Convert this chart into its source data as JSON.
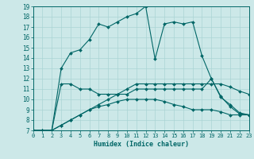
{
  "xlabel": "Humidex (Indice chaleur)",
  "xlim": [
    0,
    23
  ],
  "ylim": [
    7,
    19
  ],
  "xticks": [
    0,
    1,
    2,
    3,
    4,
    5,
    6,
    7,
    8,
    9,
    10,
    11,
    12,
    13,
    14,
    15,
    16,
    17,
    18,
    19,
    20,
    21,
    22,
    23
  ],
  "yticks": [
    7,
    8,
    9,
    10,
    11,
    12,
    13,
    14,
    15,
    16,
    17,
    18,
    19
  ],
  "bg_color": "#cce8e8",
  "grid_color": "#aad4d4",
  "line_color": "#006666",
  "lines": [
    [
      7.0,
      6.8,
      7.0,
      13.0,
      14.5,
      14.8,
      15.8,
      17.3,
      17.0,
      17.5,
      18.0,
      18.3,
      19.0,
      13.9,
      17.3,
      17.5,
      17.3,
      17.5,
      14.2,
      12.0,
      10.3,
      9.3,
      8.6,
      8.5
    ],
    [
      7.0,
      7.0,
      7.0,
      11.5,
      11.5,
      11.0,
      11.0,
      10.5,
      10.5,
      10.5,
      10.5,
      11.0,
      11.0,
      11.0,
      11.0,
      11.0,
      11.0,
      11.0,
      11.0,
      12.0,
      10.2,
      9.5,
      8.7,
      8.5
    ],
    [
      7.0,
      7.0,
      7.0,
      7.5,
      8.0,
      8.5,
      9.0,
      9.3,
      9.5,
      9.8,
      10.0,
      10.0,
      10.0,
      10.0,
      9.8,
      9.5,
      9.3,
      9.0,
      9.0,
      9.0,
      8.8,
      8.5,
      8.5,
      8.5
    ],
    [
      7.0,
      7.0,
      7.0,
      7.5,
      8.0,
      8.5,
      9.0,
      9.5,
      10.0,
      10.5,
      11.0,
      11.5,
      11.5,
      11.5,
      11.5,
      11.5,
      11.5,
      11.5,
      11.5,
      11.5,
      11.5,
      11.2,
      10.8,
      10.5
    ]
  ]
}
